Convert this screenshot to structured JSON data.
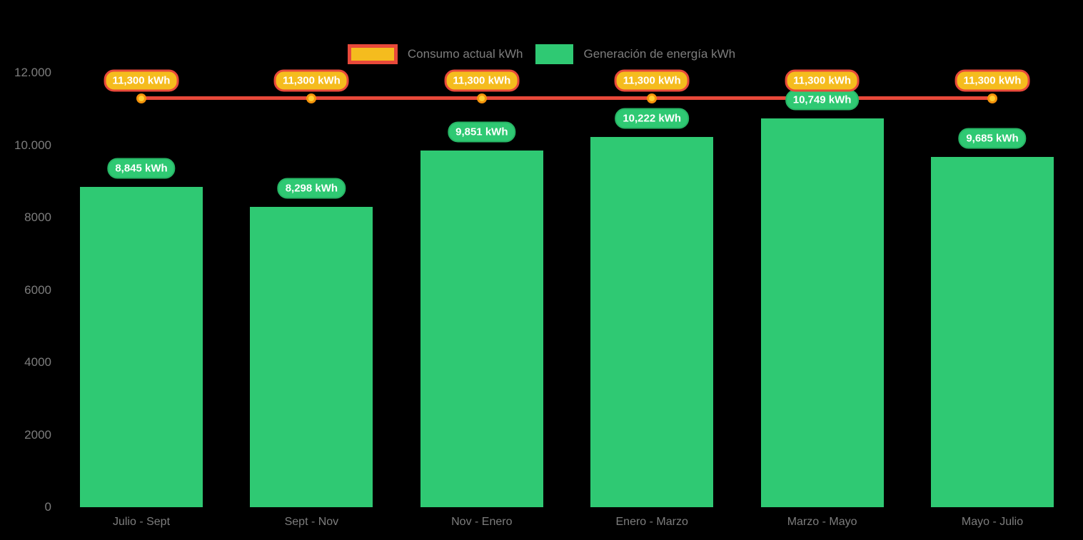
{
  "chart_data": {
    "type": "bar",
    "title": "",
    "legend_position": "top",
    "grid": false,
    "categories": [
      "Julio - Sept",
      "Sept - Nov",
      "Nov - Enero",
      "Enero - Marzo",
      "Marzo - Mayo",
      "Mayo - Julio"
    ],
    "series": [
      {
        "name": "Consumo actual kWh",
        "type": "line",
        "values": [
          11300,
          11300,
          11300,
          11300,
          11300,
          11300
        ],
        "point_labels": [
          "11,300 kWh",
          "11,300 kWh",
          "11,300 kWh",
          "11,300 kWh",
          "11,300 kWh",
          "11,300 kWh"
        ]
      },
      {
        "name": "Generación de energía kWh",
        "type": "bar",
        "values": [
          8845,
          8298,
          9851,
          10222,
          10749,
          9685
        ],
        "point_labels": [
          "8,845 kWh",
          "8,298 kWh",
          "9,851 kWh",
          "10,222 kWh",
          "10,749 kWh",
          "9,685 kWh"
        ]
      }
    ],
    "y_axis": {
      "min": 0,
      "max": 12000,
      "ticks": [
        {
          "value": 12000,
          "label": "12.000"
        },
        {
          "value": 10000,
          "label": "10.000"
        },
        {
          "value": 8000,
          "label": "8000"
        },
        {
          "value": 6000,
          "label": "6000"
        },
        {
          "value": 4000,
          "label": "4000"
        },
        {
          "value": 2000,
          "label": "2000"
        },
        {
          "value": 0,
          "label": "0"
        }
      ]
    },
    "colors": {
      "background": "#000000",
      "bar_green": "#2fc973",
      "bar_label_bg": "#2fc973",
      "bar_label_border": "#27b565",
      "line_red": "#e8493a",
      "marker_fill": "#ffd02e",
      "marker_ring": "#f5920b",
      "line_label_bg": "#f5bc1e",
      "line_label_border": "#e8493a",
      "label_text": "#ffffff",
      "axis_text": "#7d7d7d"
    }
  }
}
